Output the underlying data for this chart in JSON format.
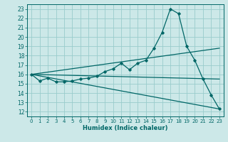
{
  "xlabel": "Humidex (Indice chaleur)",
  "bg_color": "#cce8e8",
  "grid_color": "#99cccc",
  "line_color": "#006666",
  "xlim": [
    -0.5,
    23.5
  ],
  "ylim": [
    11.5,
    23.5
  ],
  "xticks": [
    0,
    1,
    2,
    3,
    4,
    5,
    6,
    7,
    8,
    9,
    10,
    11,
    12,
    13,
    14,
    15,
    16,
    17,
    18,
    19,
    20,
    21,
    22,
    23
  ],
  "yticks": [
    12,
    13,
    14,
    15,
    16,
    17,
    18,
    19,
    20,
    21,
    22,
    23
  ],
  "curve1_x": [
    0,
    1,
    2,
    3,
    4,
    5,
    6,
    7,
    8,
    9,
    10,
    11,
    12,
    13,
    14,
    15,
    16,
    17,
    18,
    19,
    20,
    21,
    22,
    23
  ],
  "curve1_y": [
    16.0,
    15.3,
    15.6,
    15.2,
    15.2,
    15.3,
    15.5,
    15.6,
    15.8,
    16.3,
    16.6,
    17.2,
    16.5,
    17.2,
    17.5,
    18.8,
    20.5,
    23.0,
    22.5,
    19.0,
    17.5,
    15.5,
    13.8,
    12.3
  ],
  "curve2_x": [
    0,
    23
  ],
  "curve2_y": [
    16.0,
    18.8
  ],
  "curve3_x": [
    0,
    23
  ],
  "curve3_y": [
    16.0,
    12.3
  ],
  "curve4_x": [
    0,
    23
  ],
  "curve4_y": [
    16.0,
    15.5
  ]
}
